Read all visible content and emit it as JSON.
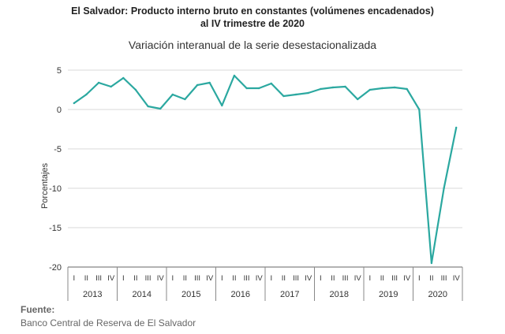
{
  "header": {
    "title_line1": "El Salvador: Producto interno bruto en constantes (volúmenes encadenados)",
    "title_line2": "al IV trimestre de 2020",
    "subtitle": "Variación interanual de la serie desestacionalizada"
  },
  "footer": {
    "source_label": "Fuente:",
    "source_text": "Banco Central de Reserva de El Salvador"
  },
  "chart_data": {
    "type": "line",
    "title": "Variación interanual de la serie desestacionalizada",
    "xlabel": "",
    "ylabel": "Porcentajes",
    "ylim": [
      -20,
      5
    ],
    "yticks": [
      5,
      0,
      -5,
      -10,
      -15,
      -20
    ],
    "grid": "horizontal",
    "legend": "none",
    "color": "#2ba8a0",
    "quarter_labels": [
      "I",
      "II",
      "III",
      "IV"
    ],
    "years": [
      "2013",
      "2014",
      "2015",
      "2016",
      "2017",
      "2018",
      "2019",
      "2020"
    ],
    "x": [
      "2013-I",
      "2013-II",
      "2013-III",
      "2013-IV",
      "2014-I",
      "2014-II",
      "2014-III",
      "2014-IV",
      "2015-I",
      "2015-II",
      "2015-III",
      "2015-IV",
      "2016-I",
      "2016-II",
      "2016-III",
      "2016-IV",
      "2017-I",
      "2017-II",
      "2017-III",
      "2017-IV",
      "2018-I",
      "2018-II",
      "2018-III",
      "2018-IV",
      "2019-I",
      "2019-II",
      "2019-III",
      "2019-IV",
      "2020-I",
      "2020-II",
      "2020-III",
      "2020-IV"
    ],
    "values": [
      0.8,
      1.9,
      3.4,
      2.9,
      4.0,
      2.5,
      0.4,
      0.1,
      1.9,
      1.3,
      3.1,
      3.4,
      0.5,
      4.3,
      2.7,
      2.7,
      3.3,
      1.7,
      1.9,
      2.1,
      2.6,
      2.8,
      2.9,
      1.3,
      2.5,
      2.7,
      2.8,
      2.6,
      0.0,
      -19.5,
      -10.0,
      -2.3
    ]
  }
}
